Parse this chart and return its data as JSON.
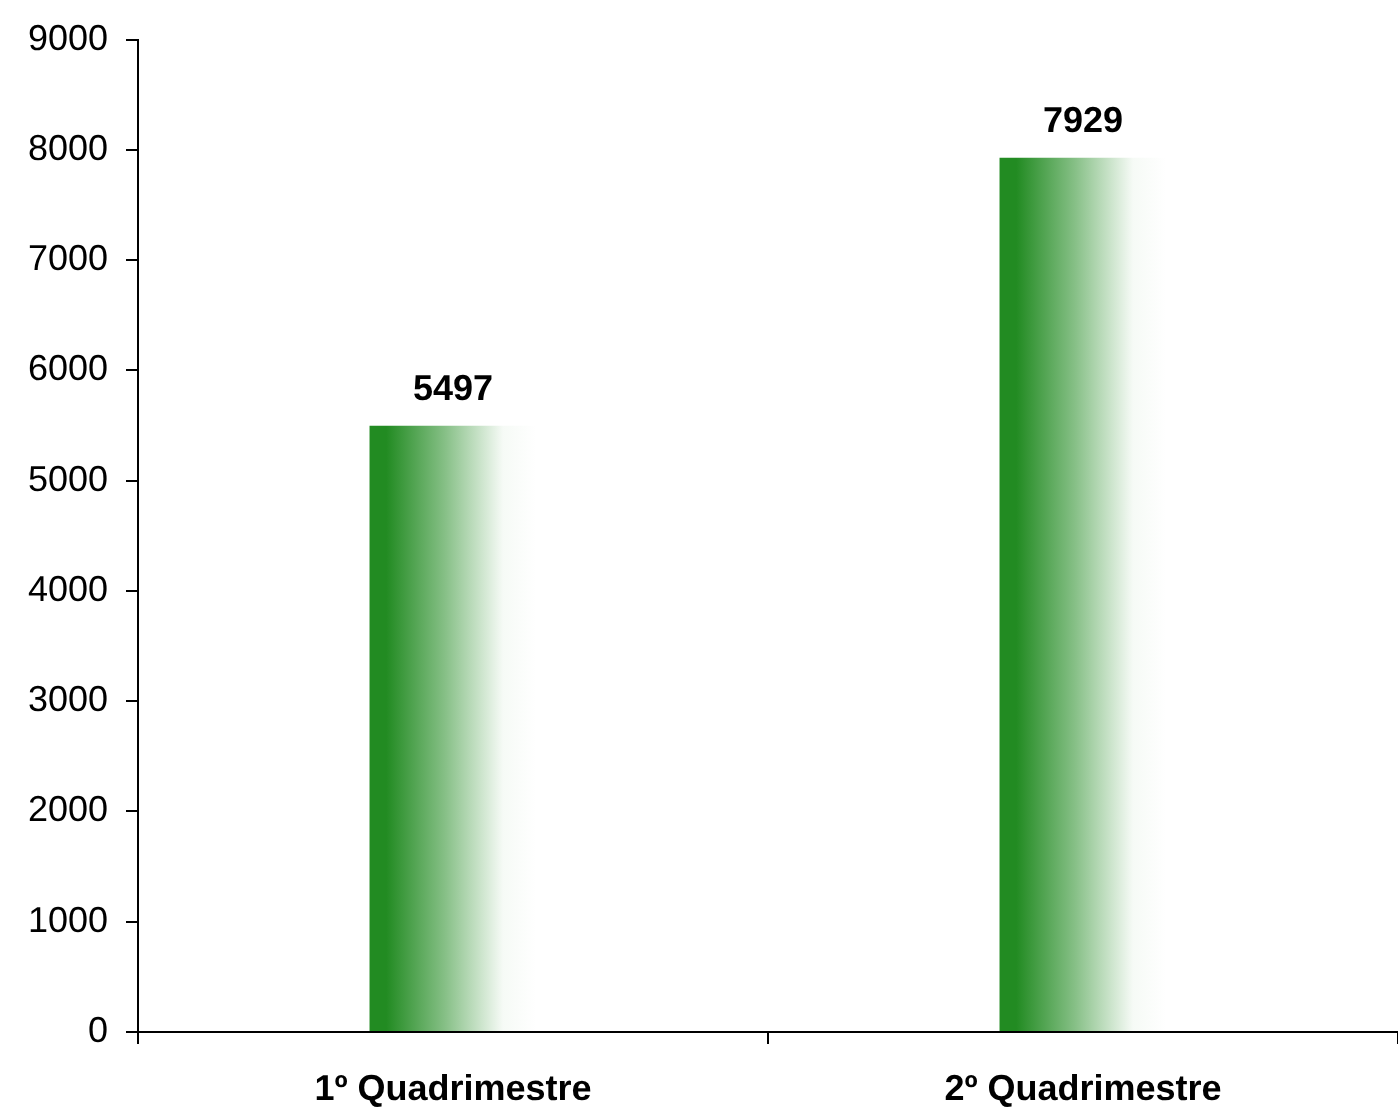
{
  "chart_data": {
    "type": "bar",
    "categories": [
      "1º Quadrimestre",
      "2º Quadrimestre"
    ],
    "values": [
      5497,
      7929
    ],
    "color": "#228b22",
    "ylim": [
      0,
      9000
    ],
    "yticks": [
      0,
      1000,
      2000,
      3000,
      4000,
      5000,
      6000,
      7000,
      8000,
      9000
    ],
    "grid": false,
    "data_labels": true
  }
}
